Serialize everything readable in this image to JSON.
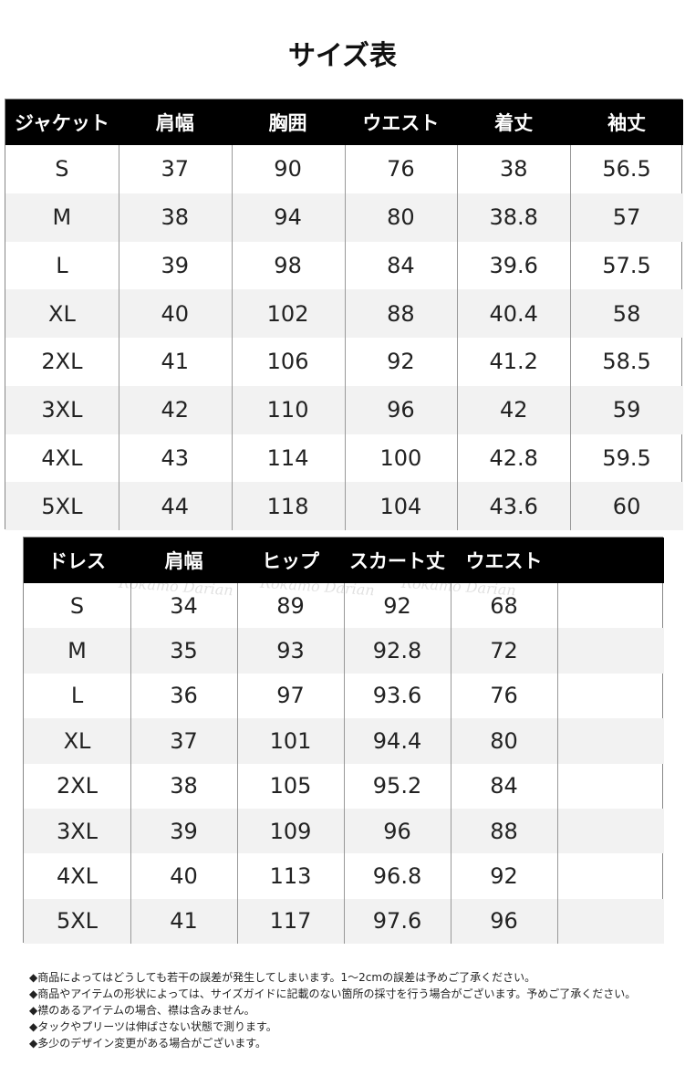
{
  "title": "サイズ表",
  "jacket": {
    "headers": [
      "ジャケット",
      "肩幅",
      "胸囲",
      "ウエスト",
      "着丈",
      "袖丈"
    ],
    "rows": [
      [
        "S",
        37,
        90,
        76,
        38,
        56.5
      ],
      [
        "M",
        38,
        94,
        80,
        38.8,
        57
      ],
      [
        "L",
        39,
        98,
        84,
        39.6,
        57.5
      ],
      [
        "XL",
        40,
        102,
        88,
        40.4,
        58
      ],
      [
        "2XL",
        41,
        106,
        92,
        41.2,
        58.5
      ],
      [
        "3XL",
        42,
        110,
        96,
        42,
        59
      ],
      [
        "4XL",
        43,
        114,
        100,
        42.8,
        59.5
      ],
      [
        "5XL",
        44,
        118,
        104,
        43.6,
        60
      ]
    ]
  },
  "dress": {
    "headers": [
      "ドレス",
      "肩幅",
      "ヒップ",
      "スカート丈",
      "ウエスト"
    ],
    "watermark": "Rokamo Darian",
    "rows": [
      [
        "S",
        34,
        89,
        92,
        68
      ],
      [
        "M",
        35,
        93,
        92.8,
        72
      ],
      [
        "L",
        36,
        97,
        93.6,
        76
      ],
      [
        "XL",
        37,
        101,
        94.4,
        80
      ],
      [
        "2XL",
        38,
        105,
        95.2,
        84
      ],
      [
        "3XL",
        39,
        109,
        96,
        88
      ],
      [
        "4XL",
        40,
        113,
        96.8,
        92
      ],
      [
        "5XL",
        41,
        117,
        97.6,
        96
      ]
    ]
  },
  "notes": [
    "◆商品によってはどうしても若干の誤差が発生してしまいます。1～2cmの誤差は予めご了承ください。",
    "◆商品やアイテムの形状によっては、サイズガイドに記載のない箇所の採寸を行う場合がございます。予めご了承ください。",
    "◆襟のあるアイテムの場合、襟は含みません。",
    "◆タックやプリーツは伸ばさない状態で測ります。",
    "◆多少のデザイン変更がある場合がございます。"
  ]
}
